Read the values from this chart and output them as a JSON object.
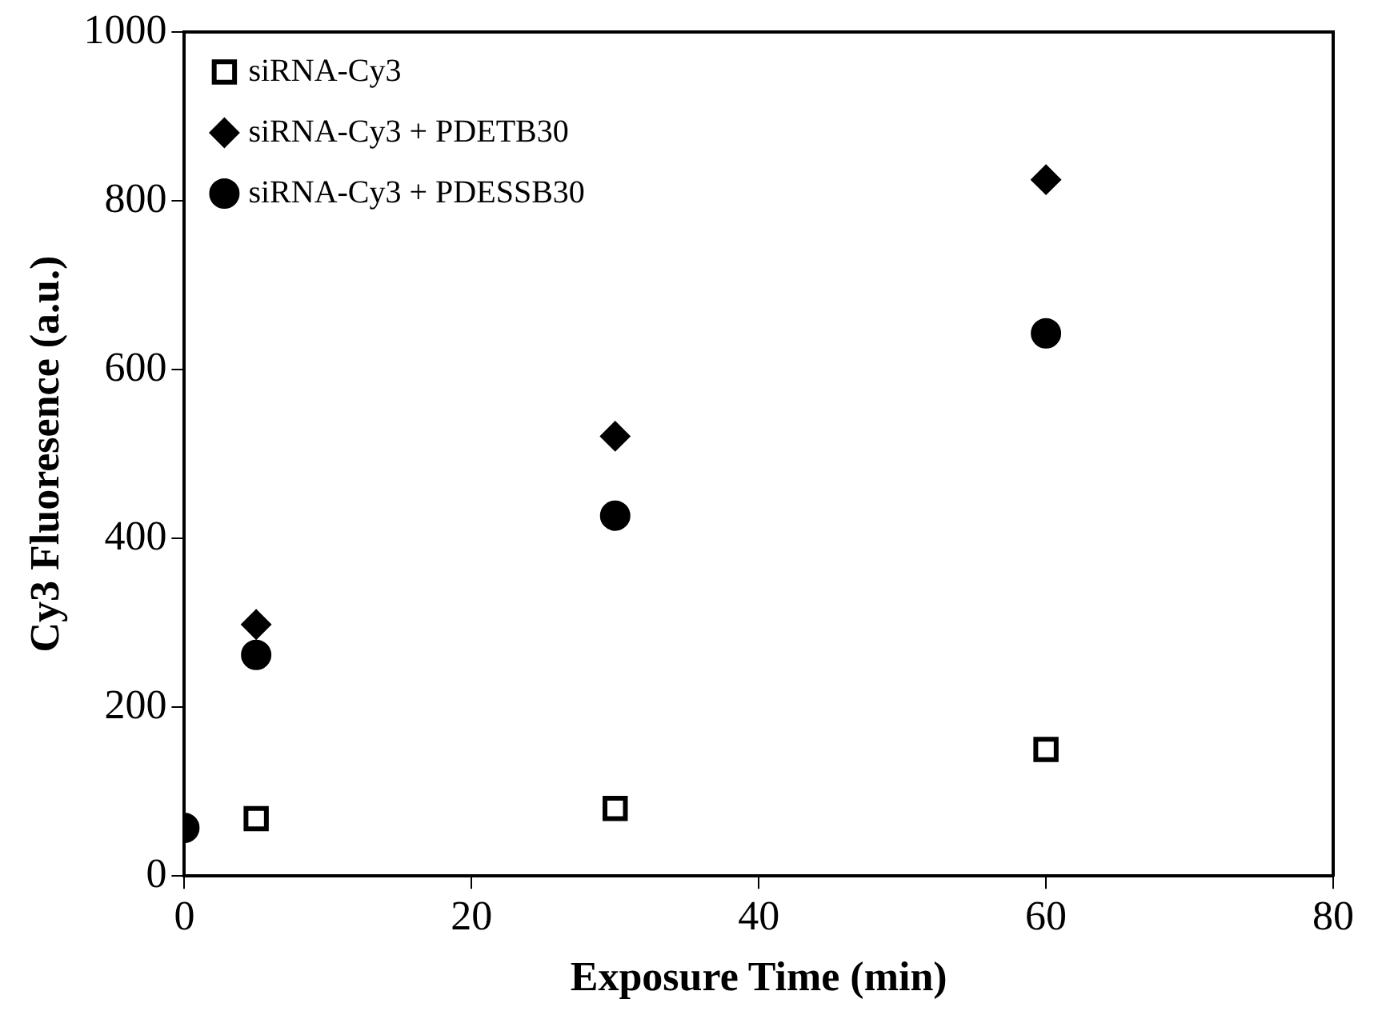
{
  "chart_data": {
    "type": "scatter",
    "xlabel": "Exposure Time (min)",
    "ylabel": "Cy3 Fluoresence (a.u.)",
    "xlim": [
      0,
      80
    ],
    "xticks": [
      0,
      20,
      40,
      60,
      80
    ],
    "ylim": [
      0,
      1000
    ],
    "yticks": [
      0,
      200,
      400,
      600,
      800,
      1000
    ],
    "grid": false,
    "legend": "top left",
    "series": [
      {
        "name": "siRNA-Cy3",
        "color": "#000000",
        "marker": "square",
        "x": [
          5,
          30,
          60
        ],
        "values": [
          68,
          80,
          150
        ]
      },
      {
        "name": "siRNA-Cy3 + PDETB30",
        "color": "#000000",
        "marker": "diamond",
        "x": [
          5,
          30,
          60
        ],
        "values": [
          298,
          521,
          825
        ]
      },
      {
        "name": "siRNA-Cy3 + PDESSB30",
        "color": "#000000",
        "marker": "circle",
        "x": [
          0,
          5,
          30,
          60
        ],
        "values": [
          57,
          262,
          427,
          643
        ]
      }
    ]
  }
}
